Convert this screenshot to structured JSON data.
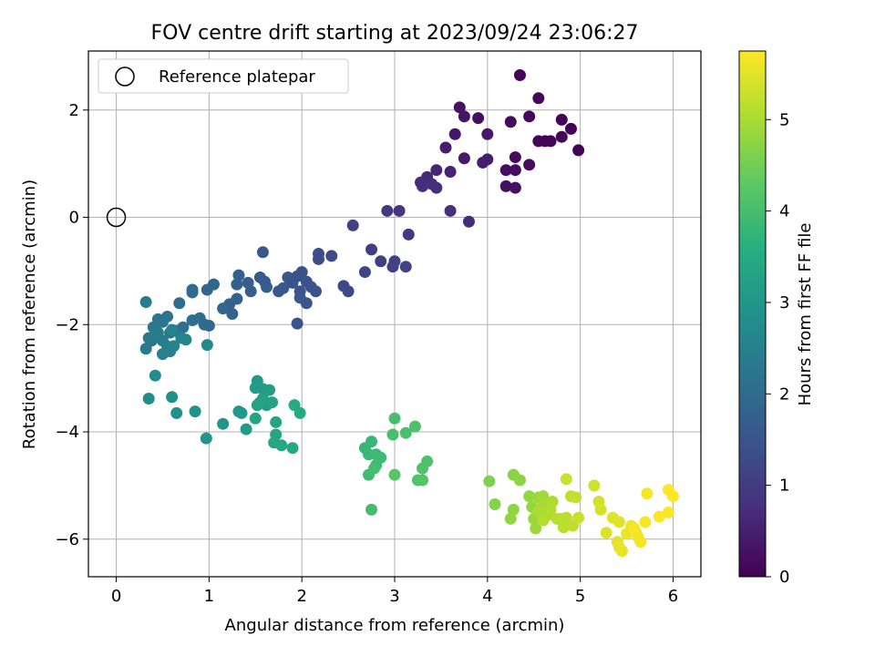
{
  "chart_data": {
    "type": "scatter",
    "title": "FOV centre drift starting at 2023/09/24 23:06:27",
    "xlabel": "Angular distance from reference (arcmin)",
    "ylabel": "Rotation from reference (arcmin)",
    "xlim": [
      -0.3,
      6.3
    ],
    "ylim": [
      -6.7,
      3.1
    ],
    "xticks": [
      0,
      1,
      2,
      3,
      4,
      5,
      6
    ],
    "yticks": [
      -6,
      -4,
      -2,
      0,
      2
    ],
    "grid": true,
    "legend": {
      "position": "top-left",
      "entries": [
        "Reference platepar"
      ]
    },
    "reference_point": {
      "x": 0,
      "y": 0
    },
    "colorbar": {
      "label": "Hours from first FF file",
      "min": 0,
      "max": 5.75,
      "ticks": [
        0,
        1,
        2,
        3,
        4,
        5
      ],
      "colormap": "viridis"
    },
    "points": [
      [
        4.35,
        2.65,
        0.05
      ],
      [
        4.55,
        2.22,
        0.1
      ],
      [
        4.45,
        1.88,
        0.12
      ],
      [
        4.25,
        1.78,
        0.18
      ],
      [
        3.7,
        2.05,
        0.3
      ],
      [
        3.75,
        1.88,
        0.32
      ],
      [
        3.9,
        1.85,
        0.25
      ],
      [
        3.65,
        1.55,
        0.35
      ],
      [
        4.0,
        1.55,
        0.38
      ],
      [
        3.55,
        1.3,
        0.45
      ],
      [
        3.75,
        1.1,
        0.4
      ],
      [
        3.95,
        1.02,
        0.42
      ],
      [
        4.0,
        1.08,
        0.44
      ],
      [
        4.2,
        0.88,
        0.2
      ],
      [
        4.3,
        1.12,
        0.15
      ],
      [
        4.45,
        0.98,
        0.17
      ],
      [
        4.3,
        0.88,
        0.22
      ],
      [
        4.2,
        0.58,
        0.25
      ],
      [
        4.3,
        0.55,
        0.28
      ],
      [
        4.55,
        1.42,
        0.08
      ],
      [
        4.62,
        1.42,
        0.07
      ],
      [
        4.68,
        1.42,
        0.06
      ],
      [
        4.8,
        1.82,
        0.05
      ],
      [
        4.8,
        1.5,
        0.06
      ],
      [
        4.9,
        1.65,
        0.04
      ],
      [
        4.98,
        1.25,
        0.02
      ],
      [
        3.6,
        0.85,
        0.55
      ],
      [
        3.45,
        0.88,
        0.6
      ],
      [
        3.35,
        0.75,
        0.65
      ],
      [
        3.28,
        0.65,
        0.7
      ],
      [
        3.3,
        0.58,
        0.72
      ],
      [
        3.4,
        0.62,
        0.75
      ],
      [
        3.45,
        0.55,
        0.78
      ],
      [
        3.6,
        0.12,
        0.75
      ],
      [
        3.8,
        -0.08,
        0.7
      ],
      [
        2.92,
        0.12,
        0.95
      ],
      [
        3.05,
        0.12,
        0.92
      ],
      [
        3.15,
        -0.32,
        1.0
      ],
      [
        2.55,
        -0.15,
        1.1
      ],
      [
        2.75,
        -0.6,
        1.05
      ],
      [
        2.85,
        -0.82,
        1.08
      ],
      [
        2.98,
        -0.92,
        1.12
      ],
      [
        3.0,
        -0.82,
        1.1
      ],
      [
        3.12,
        -0.92,
        1.15
      ],
      [
        2.68,
        -1.02,
        1.2
      ],
      [
        2.45,
        -1.28,
        1.25
      ],
      [
        2.5,
        -1.38,
        1.28
      ],
      [
        2.32,
        -0.72,
        1.3
      ],
      [
        2.18,
        -0.68,
        1.35
      ],
      [
        2.18,
        -0.78,
        1.33
      ],
      [
        2.0,
        -1.02,
        1.4
      ],
      [
        1.95,
        -1.1,
        1.45
      ],
      [
        1.85,
        -1.12,
        1.5
      ],
      [
        1.9,
        -1.22,
        1.48
      ],
      [
        2.05,
        -1.2,
        1.42
      ],
      [
        2.1,
        -1.3,
        1.44
      ],
      [
        2.15,
        -1.38,
        1.46
      ],
      [
        1.98,
        -1.38,
        1.5
      ],
      [
        1.8,
        -1.32,
        1.55
      ],
      [
        1.75,
        -1.38,
        1.58
      ],
      [
        1.95,
        -1.98,
        1.5
      ],
      [
        2.05,
        -1.6,
        1.52
      ],
      [
        1.98,
        -1.5,
        1.54
      ],
      [
        1.58,
        -0.65,
        1.6
      ],
      [
        1.55,
        -1.12,
        1.62
      ],
      [
        1.6,
        -1.2,
        1.65
      ],
      [
        1.62,
        -1.3,
        1.68
      ],
      [
        1.42,
        -1.22,
        1.7
      ],
      [
        1.45,
        -1.38,
        1.72
      ],
      [
        1.32,
        -1.08,
        1.75
      ],
      [
        1.3,
        -1.25,
        1.78
      ],
      [
        1.3,
        -1.52,
        1.8
      ],
      [
        1.22,
        -1.62,
        1.82
      ],
      [
        1.25,
        -1.8,
        1.85
      ],
      [
        1.15,
        -1.7,
        1.88
      ],
      [
        1.05,
        -1.25,
        1.9
      ],
      [
        0.98,
        -1.35,
        1.92
      ],
      [
        1.0,
        -2.02,
        1.95
      ],
      [
        0.95,
        -2.0,
        1.98
      ],
      [
        0.82,
        -1.35,
        2.0
      ],
      [
        0.82,
        -1.4,
        2.02
      ],
      [
        0.68,
        -1.6,
        2.05
      ],
      [
        0.9,
        -1.88,
        2.08
      ],
      [
        0.82,
        -1.92,
        2.1
      ],
      [
        0.72,
        -2.05,
        2.12
      ],
      [
        0.65,
        -2.12,
        2.15
      ],
      [
        0.58,
        -2.15,
        2.18
      ],
      [
        0.55,
        -1.85,
        2.2
      ],
      [
        0.5,
        -1.95,
        2.22
      ],
      [
        0.45,
        -1.9,
        2.25
      ],
      [
        0.4,
        -2.05,
        2.28
      ],
      [
        0.38,
        -2.3,
        2.3
      ],
      [
        0.32,
        -2.45,
        2.32
      ],
      [
        0.35,
        -2.25,
        2.35
      ],
      [
        0.32,
        -1.58,
        2.38
      ],
      [
        0.45,
        -2.15,
        2.4
      ],
      [
        0.5,
        -2.3,
        2.42
      ],
      [
        0.55,
        -2.4,
        2.45
      ],
      [
        0.5,
        -2.55,
        2.48
      ],
      [
        0.58,
        -2.5,
        2.5
      ],
      [
        0.62,
        -2.4,
        2.52
      ],
      [
        0.6,
        -2.1,
        2.55
      ],
      [
        0.7,
        -2.25,
        2.58
      ],
      [
        0.75,
        -2.28,
        2.6
      ],
      [
        0.98,
        -2.38,
        2.7
      ],
      [
        0.42,
        -2.95,
        2.75
      ],
      [
        0.35,
        -3.38,
        2.8
      ],
      [
        0.6,
        -3.35,
        2.85
      ],
      [
        0.65,
        -3.65,
        2.9
      ],
      [
        0.85,
        -3.62,
        2.92
      ],
      [
        0.97,
        -4.12,
        2.95
      ],
      [
        1.15,
        -3.85,
        3.0
      ],
      [
        1.32,
        -3.62,
        3.02
      ],
      [
        1.35,
        -3.65,
        3.05
      ],
      [
        1.4,
        -3.95,
        3.08
      ],
      [
        1.52,
        -3.05,
        3.1
      ],
      [
        1.5,
        -3.18,
        3.12
      ],
      [
        1.58,
        -3.2,
        3.15
      ],
      [
        1.65,
        -3.22,
        3.18
      ],
      [
        1.55,
        -3.45,
        3.2
      ],
      [
        1.62,
        -3.5,
        3.22
      ],
      [
        1.58,
        -3.38,
        3.25
      ],
      [
        1.52,
        -3.5,
        3.28
      ],
      [
        1.68,
        -3.45,
        3.3
      ],
      [
        1.5,
        -3.75,
        3.32
      ],
      [
        1.72,
        -3.82,
        3.35
      ],
      [
        1.72,
        -4.05,
        3.38
      ],
      [
        1.7,
        -4.2,
        3.4
      ],
      [
        1.78,
        -4.25,
        3.42
      ],
      [
        1.9,
        -4.3,
        3.45
      ],
      [
        1.92,
        -3.5,
        3.48
      ],
      [
        1.98,
        -3.65,
        3.5
      ],
      [
        2.68,
        -4.3,
        3.8
      ],
      [
        2.75,
        -4.18,
        3.82
      ],
      [
        2.72,
        -4.42,
        3.85
      ],
      [
        2.8,
        -4.42,
        3.88
      ],
      [
        2.85,
        -4.48,
        3.9
      ],
      [
        2.72,
        -4.8,
        3.92
      ],
      [
        2.8,
        -4.62,
        3.95
      ],
      [
        2.78,
        -4.68,
        3.98
      ],
      [
        2.75,
        -5.45,
        3.95
      ],
      [
        3.0,
        -3.75,
        4.0
      ],
      [
        2.98,
        -4.05,
        4.02
      ],
      [
        3.12,
        -4.02,
        4.05
      ],
      [
        3.22,
        -3.9,
        4.08
      ],
      [
        3.35,
        -4.55,
        4.1
      ],
      [
        3.3,
        -4.68,
        4.12
      ],
      [
        3.25,
        -4.9,
        4.15
      ],
      [
        3.3,
        -4.9,
        4.18
      ],
      [
        3.0,
        -4.8,
        4.2
      ],
      [
        4.02,
        -4.92,
        4.6
      ],
      [
        4.08,
        -5.35,
        4.65
      ],
      [
        4.28,
        -4.8,
        4.7
      ],
      [
        4.35,
        -4.9,
        4.72
      ],
      [
        4.28,
        -5.45,
        4.75
      ],
      [
        4.25,
        -5.62,
        4.78
      ],
      [
        4.45,
        -5.2,
        4.8
      ],
      [
        4.48,
        -5.4,
        4.82
      ],
      [
        4.5,
        -5.62,
        4.85
      ],
      [
        4.52,
        -5.8,
        4.88
      ],
      [
        4.55,
        -5.22,
        4.9
      ],
      [
        4.6,
        -5.2,
        4.92
      ],
      [
        4.62,
        -5.32,
        4.95
      ],
      [
        4.58,
        -5.42,
        4.98
      ],
      [
        4.65,
        -5.55,
        5.0
      ],
      [
        4.55,
        -5.48,
        5.02
      ],
      [
        4.7,
        -5.3,
        5.05
      ],
      [
        4.68,
        -5.45,
        5.08
      ],
      [
        4.6,
        -5.65,
        5.1
      ],
      [
        4.75,
        -5.62,
        5.12
      ],
      [
        4.8,
        -5.62,
        5.14
      ],
      [
        4.82,
        -5.78,
        5.16
      ],
      [
        4.85,
        -5.6,
        5.18
      ],
      [
        4.92,
        -5.75,
        5.2
      ],
      [
        4.9,
        -5.2,
        5.22
      ],
      [
        4.95,
        -5.22,
        5.24
      ],
      [
        4.98,
        -5.6,
        5.26
      ],
      [
        4.85,
        -4.88,
        5.28
      ],
      [
        5.15,
        -5.0,
        5.35
      ],
      [
        5.2,
        -5.3,
        5.38
      ],
      [
        5.22,
        -5.45,
        5.4
      ],
      [
        5.28,
        -5.88,
        5.45
      ],
      [
        5.35,
        -5.6,
        5.48
      ],
      [
        5.42,
        -5.68,
        5.5
      ],
      [
        5.4,
        -6.05,
        5.52
      ],
      [
        5.42,
        -6.15,
        5.54
      ],
      [
        5.45,
        -6.22,
        5.56
      ],
      [
        5.5,
        -5.9,
        5.58
      ],
      [
        5.55,
        -5.75,
        5.6
      ],
      [
        5.6,
        -5.88,
        5.62
      ],
      [
        5.62,
        -5.95,
        5.64
      ],
      [
        5.65,
        -6.05,
        5.66
      ],
      [
        5.58,
        -5.8,
        5.68
      ],
      [
        5.7,
        -5.68,
        5.7
      ],
      [
        5.72,
        -5.15,
        5.7
      ],
      [
        5.85,
        -5.58,
        5.72
      ],
      [
        5.95,
        -5.08,
        5.73
      ],
      [
        5.95,
        -5.5,
        5.74
      ],
      [
        6.0,
        -5.2,
        5.75
      ]
    ]
  }
}
